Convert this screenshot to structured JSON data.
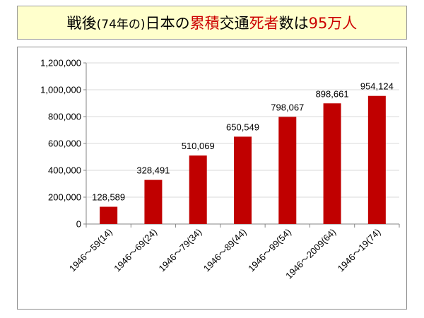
{
  "title": {
    "parts": [
      {
        "text": "戦後",
        "style": "normal"
      },
      {
        "text": "(74年の)",
        "style": "paren"
      },
      {
        "text": "日本の",
        "style": "normal"
      },
      {
        "text": "累積",
        "style": "hl"
      },
      {
        "text": "交通",
        "style": "normal"
      },
      {
        "text": "死者",
        "style": "hl"
      },
      {
        "text": "数は",
        "style": "normal"
      },
      {
        "text": "95万人",
        "style": "hl"
      }
    ]
  },
  "colors": {
    "bar": "#c00000",
    "title_bg": "#ffffcc",
    "highlight_text": "#cc0000",
    "gridline": "#d9d9d9"
  },
  "chart_data": {
    "type": "bar",
    "title": "",
    "xlabel": "",
    "ylabel": "",
    "categories": [
      "1946～59(14)",
      "1946～69(24)",
      "1946～79(34)",
      "1946～89(44)",
      "1946～99(54)",
      "1946～2009(64)",
      "1946～19(74)"
    ],
    "values": [
      128589,
      328491,
      510069,
      650549,
      798067,
      898661,
      954124
    ],
    "data_labels": [
      "128,589",
      "328,491",
      "510,069",
      "650,549",
      "798,067",
      "898,661",
      "954,124"
    ],
    "y_ticks": [
      "0",
      "200,000",
      "400,000",
      "600,000",
      "800,000",
      "1,000,000",
      "1,200,000"
    ],
    "ylim": [
      0,
      1200000
    ],
    "grid": true,
    "legend": "none"
  }
}
